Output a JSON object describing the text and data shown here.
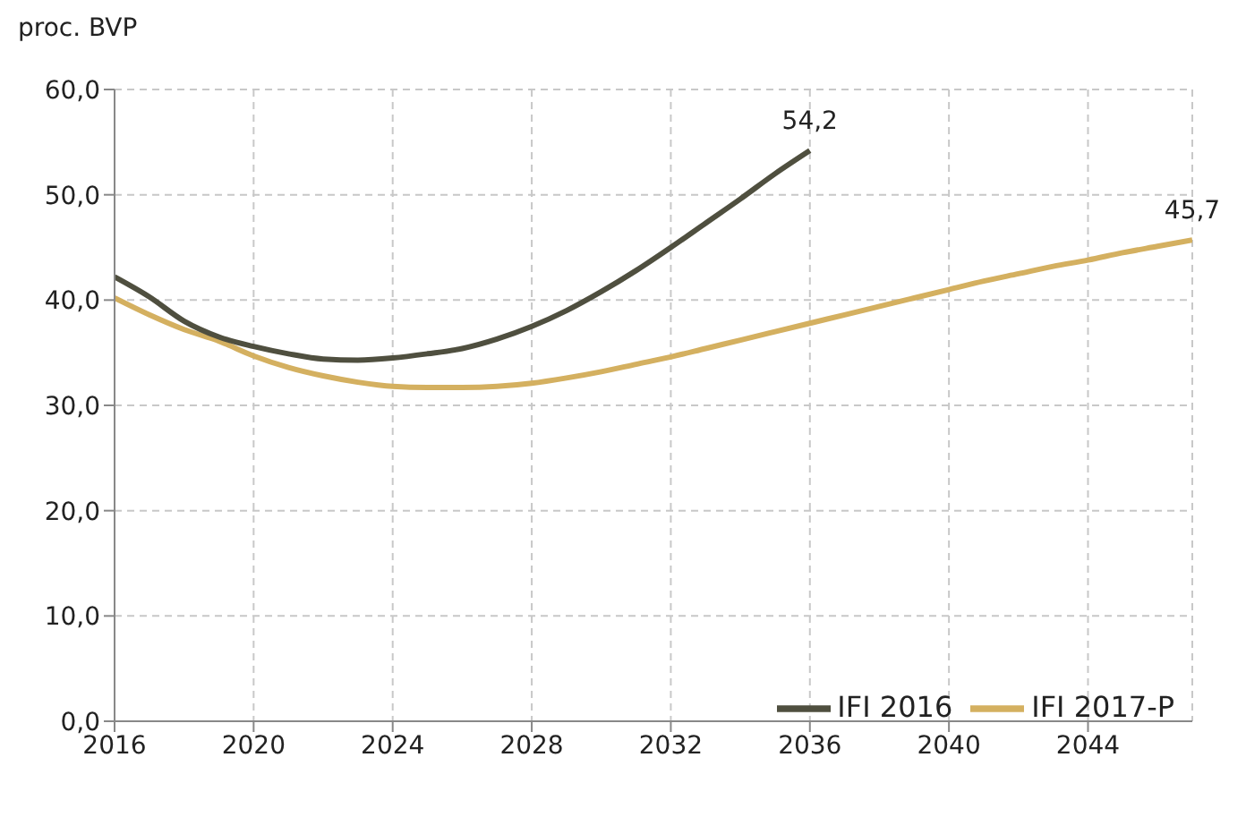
{
  "chart_data": {
    "type": "line",
    "ylabel": "proc. BVP",
    "x": [
      2016,
      2017,
      2018,
      2019,
      2020,
      2021,
      2022,
      2023,
      2024,
      2025,
      2026,
      2027,
      2028,
      2029,
      2030,
      2031,
      2032,
      2033,
      2034,
      2035,
      2036,
      2037,
      2038,
      2039,
      2040,
      2041,
      2042,
      2043,
      2044,
      2045,
      2046,
      2047
    ],
    "series": [
      {
        "name": "IFI 2017-P",
        "color": "#d4b060",
        "values": [
          40.2,
          38.6,
          37.2,
          36.1,
          34.7,
          33.6,
          32.8,
          32.2,
          31.8,
          31.7,
          31.7,
          31.8,
          32.1,
          32.6,
          33.2,
          33.9,
          34.6,
          35.4,
          36.2,
          37.0,
          37.8,
          38.6,
          39.4,
          40.2,
          41.0,
          41.8,
          42.5,
          43.2,
          43.8,
          44.5,
          45.1,
          45.7
        ],
        "value_labels": [
          null,
          null,
          null,
          null,
          null,
          null,
          null,
          null,
          null,
          null,
          null,
          null,
          null,
          null,
          null,
          null,
          null,
          null,
          null,
          null,
          null,
          null,
          null,
          null,
          null,
          null,
          null,
          null,
          null,
          null,
          null,
          "45,7"
        ]
      },
      {
        "name": "IFI 2016",
        "color": "#4f4f3f",
        "values": [
          42.2,
          40.3,
          38.0,
          36.5,
          35.6,
          34.9,
          34.4,
          34.3,
          34.5,
          34.9,
          35.4,
          36.3,
          37.5,
          39.0,
          40.8,
          42.8,
          45.0,
          47.3,
          49.6,
          52.0,
          54.2,
          null,
          null,
          null,
          null,
          null,
          null,
          null,
          null,
          null,
          null,
          null
        ],
        "value_labels": [
          null,
          null,
          null,
          null,
          null,
          null,
          null,
          null,
          null,
          null,
          null,
          null,
          null,
          null,
          null,
          null,
          null,
          null,
          null,
          null,
          "54,2",
          null,
          null,
          null,
          null,
          null,
          null,
          null,
          null,
          null,
          null,
          null
        ]
      }
    ],
    "xlim": [
      2016,
      2047
    ],
    "xticks": [
      2016,
      2020,
      2024,
      2028,
      2032,
      2036,
      2040,
      2044
    ],
    "ylim": [
      0,
      60
    ],
    "yticks": [
      {
        "value": 0,
        "label": "0,0"
      },
      {
        "value": 10,
        "label": "10,0"
      },
      {
        "value": 20,
        "label": "20,0"
      },
      {
        "value": 30,
        "label": "30,0"
      },
      {
        "value": 40,
        "label": "40,0"
      },
      {
        "value": 50,
        "label": "50,0"
      },
      {
        "value": 60,
        "label": "60,0"
      }
    ],
    "grid": true,
    "legend": "bottom right",
    "marker": "none",
    "line_style": "solid"
  }
}
